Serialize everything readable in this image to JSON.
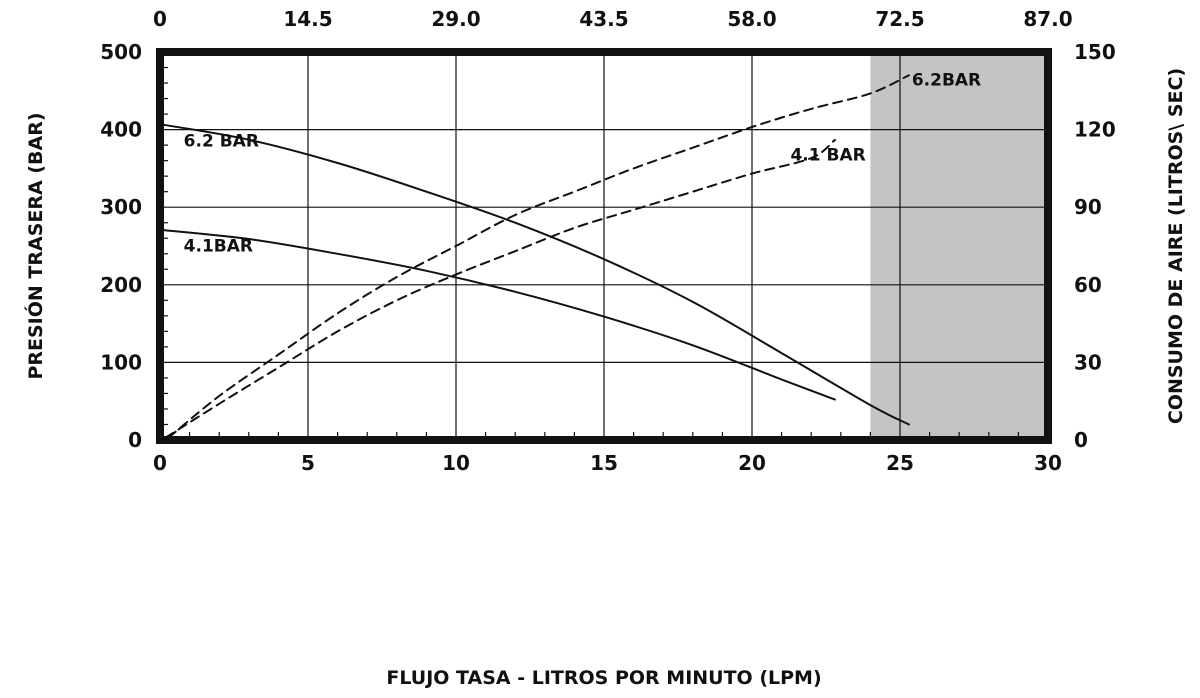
{
  "chart_data": {
    "type": "line",
    "title": "",
    "xlabel": "FLUJO TASA - LITROS POR MINUTO (LPM)",
    "ylabel_left": "PRESIÓN TRASERA (BAR)",
    "ylabel_right": "CONSUMO DE AIRE (LITROS\\ SEC)",
    "xlim": [
      0,
      30
    ],
    "ylim_left": [
      0,
      500
    ],
    "ylim_right": [
      0,
      150
    ],
    "x_ticks": [
      "0",
      "5",
      "10",
      "15",
      "20",
      "25",
      "30"
    ],
    "x_tick_values": [
      0,
      5,
      10,
      15,
      20,
      25,
      30
    ],
    "top_ticks": [
      "0",
      "14.5",
      "29.0",
      "43.5",
      "58.0",
      "72.5",
      "87.0"
    ],
    "left_ticks": [
      "0",
      "100",
      "200",
      "300",
      "400",
      "500"
    ],
    "left_tick_values": [
      0,
      100,
      200,
      300,
      400,
      500
    ],
    "right_ticks": [
      "0",
      "30",
      "60",
      "90",
      "120",
      "150"
    ],
    "right_tick_values": [
      0,
      30,
      60,
      90,
      120,
      150
    ],
    "grid": true,
    "shaded_region": {
      "x_from": 24,
      "x_to": 30,
      "color": "#c4c4c6"
    },
    "series": [
      {
        "name": "6.2 BAR",
        "axis": "left",
        "style": "solid",
        "x": [
          0,
          3,
          6,
          9,
          12,
          15,
          18,
          21,
          24,
          25.3
        ],
        "y": [
          407,
          387,
          357,
          320,
          280,
          233,
          178,
          112,
          45,
          20
        ]
      },
      {
        "name": "4.1BAR",
        "axis": "left",
        "style": "solid",
        "x": [
          0,
          3,
          6,
          9,
          12,
          15,
          18,
          21,
          22.8
        ],
        "y": [
          271,
          259,
          240,
          218,
          191,
          159,
          122,
          78,
          52
        ]
      },
      {
        "name": "6.2BAR",
        "axis": "right",
        "style": "dashed",
        "x": [
          0.3,
          2,
          4,
          6,
          8,
          10,
          12,
          14,
          16,
          18,
          20,
          22,
          24,
          25.3
        ],
        "y": [
          1,
          17,
          33,
          49,
          63,
          75,
          87,
          96,
          105,
          113,
          121,
          128,
          134,
          141
        ]
      },
      {
        "name": "4.1 BAR",
        "axis": "right",
        "style": "dashed",
        "x": [
          0.2,
          2,
          4,
          6,
          8,
          10,
          12,
          14,
          16,
          18,
          20,
          22,
          22.8
        ],
        "y": [
          1,
          14,
          28,
          42,
          54,
          64,
          73,
          82,
          89,
          96,
          103,
          109,
          116
        ]
      }
    ],
    "series_labels": [
      {
        "text": "6.2 BAR",
        "x": 0.8,
        "y": 378,
        "axis": "left"
      },
      {
        "text": "4.1BAR",
        "x": 0.8,
        "y": 243,
        "axis": "left"
      },
      {
        "text": "6.2BAR",
        "x": 25.4,
        "y": 137,
        "axis": "right"
      },
      {
        "text": "4.1 BAR",
        "x": 21.3,
        "y": 108,
        "axis": "right"
      }
    ]
  }
}
